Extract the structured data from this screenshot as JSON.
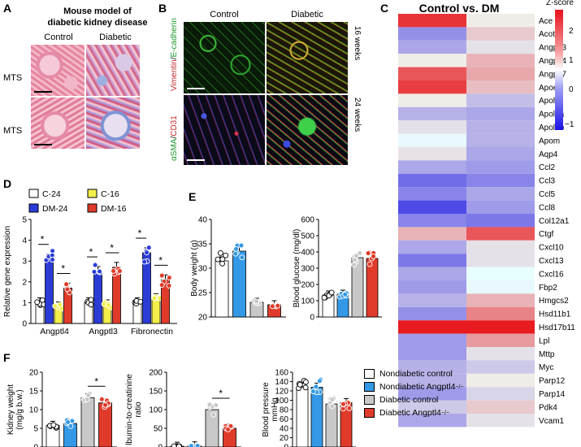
{
  "panels": {
    "A": {
      "label": "A",
      "title_line1": "Mouse model of",
      "title_line2": "diabetic kidney disease",
      "col_control": "Control",
      "col_diabetic": "Diabetic",
      "row1": "MTS",
      "row2": "MTS"
    },
    "B": {
      "label": "B",
      "col_control": "Control",
      "col_diabetic": "Diabetic",
      "row1_side": "16 weeks",
      "row2_side": "24 weeks",
      "stain_top_a": "Vimentin",
      "stain_top_sep": "/",
      "stain_top_b": "E-cadherin",
      "stain_bottom_a": "αSMA",
      "stain_bottom_sep": "/",
      "stain_bottom_b": "CD31"
    },
    "C": {
      "label": "C",
      "title": "Control vs. DM",
      "scale_title": "Z-score",
      "scale_ticks": [
        "2",
        "1",
        "0",
        "−1"
      ]
    },
    "D": {
      "label": "D"
    },
    "E": {
      "label": "E"
    },
    "F": {
      "label": "F"
    }
  },
  "chart_data": [
    {
      "id": "heatmap-C",
      "type": "heatmap",
      "columns": [
        "Control",
        "DM"
      ],
      "genes": [
        "Ace",
        "Acot1",
        "Angptl3",
        "Angptl4",
        "Angptl7",
        "Apoe",
        "Apoh",
        "Apol9a",
        "Apol9b",
        "Apom",
        "Aqp4",
        "Ccl2",
        "Ccl3",
        "Ccl5",
        "Ccl8",
        "Col12a1",
        "Ctgf",
        "Cxcl10",
        "Cxcl13",
        "Cxcl16",
        "Fbp2",
        "Hmgcs2",
        "Hsd11b1",
        "Hsd17b11",
        "Lpl",
        "Mttp",
        "Myc",
        "Parp12",
        "Parp14",
        "Pdk4",
        "Vcam1"
      ],
      "z": [
        [
          1.9,
          -0.3
        ],
        [
          -1.1,
          0.6
        ],
        [
          -0.9,
          -0.4
        ],
        [
          -0.3,
          0.8
        ],
        [
          1.6,
          0.9
        ],
        [
          1.8,
          0.7
        ],
        [
          -0.3,
          -0.7
        ],
        [
          -0.8,
          -0.9
        ],
        [
          -0.4,
          -0.8
        ],
        [
          0.2,
          -0.8
        ],
        [
          0.4,
          -0.9
        ],
        [
          -0.9,
          -1.0
        ],
        [
          -1.4,
          -1.2
        ],
        [
          -1.2,
          -0.9
        ],
        [
          -1.7,
          -1.0
        ],
        [
          -1.2,
          -1.3
        ],
        [
          0.8,
          1.6
        ],
        [
          -0.9,
          -0.4
        ],
        [
          -1.3,
          -0.4
        ],
        [
          -0.9,
          0.0
        ],
        [
          -1.0,
          0.2
        ],
        [
          -0.8,
          0.8
        ],
        [
          -1.1,
          1.2
        ],
        [
          2.1,
          2.1
        ],
        [
          -1.0,
          1.0
        ],
        [
          -1.0,
          -0.4
        ],
        [
          -0.8,
          -0.6
        ],
        [
          -0.8,
          -0.3
        ],
        [
          -1.0,
          -0.5
        ],
        [
          -0.6,
          0.6
        ],
        [
          -0.9,
          -0.4
        ]
      ],
      "zlim": [
        -2.2,
        2.2
      ]
    },
    {
      "id": "bar-D",
      "type": "bar",
      "ylabel": "Relative gene expression",
      "ylim": [
        0,
        5
      ],
      "yticks": [
        0,
        1,
        2,
        3,
        4,
        5
      ],
      "categories": [
        "Angptl4",
        "Angptl3",
        "Fibronectin"
      ],
      "series": [
        {
          "name": "C-24",
          "color": "#ffffff",
          "values": [
            1.0,
            1.0,
            1.0
          ]
        },
        {
          "name": "DM-24",
          "color": "#2b3cd6",
          "values": [
            3.1,
            2.5,
            3.4
          ]
        },
        {
          "name": "C-16",
          "color": "#f3ee4a",
          "values": [
            0.8,
            0.9,
            1.2
          ]
        },
        {
          "name": "DM-16",
          "color": "#e03b2a",
          "values": [
            1.7,
            2.7,
            2.1
          ]
        }
      ],
      "legend_order": [
        "C-24",
        "C-16",
        "DM-24",
        "DM-16"
      ],
      "significance": "*"
    },
    {
      "id": "bar-E-weight",
      "type": "bar",
      "ylabel": "Body weight (g)",
      "ylim": [
        20,
        40
      ],
      "yticks": [
        20,
        25,
        30,
        35,
        40
      ],
      "values": [
        31.5,
        33.5,
        23.0,
        22.5
      ],
      "colors": [
        "#ffffff",
        "#3399e6",
        "#c8c8c8",
        "#e03b2a"
      ]
    },
    {
      "id": "bar-E-glucose",
      "type": "bar",
      "ylabel": "Blood glucose (mg/dl)",
      "ylim": [
        0,
        600
      ],
      "yticks": [
        0,
        100,
        200,
        300,
        400,
        500,
        600
      ],
      "values": [
        135,
        140,
        365,
        360
      ],
      "colors": [
        "#ffffff",
        "#3399e6",
        "#c8c8c8",
        "#e03b2a"
      ]
    },
    {
      "id": "bar-F-kidney",
      "type": "bar",
      "ylabel_line1": "Kidney weight",
      "ylabel_line2": "(mg/g b.w.)",
      "ylim": [
        0,
        20
      ],
      "yticks": [
        0,
        5,
        10,
        15,
        20
      ],
      "values": [
        5.8,
        6.3,
        13.2,
        11.8
      ],
      "colors": [
        "#ffffff",
        "#3399e6",
        "#c8c8c8",
        "#e03b2a"
      ],
      "significance": "*"
    },
    {
      "id": "bar-F-albumin",
      "type": "bar",
      "ylabel_line1": "lbumin-to-creatinine",
      "ylabel_line2": "ratio",
      "ylim": [
        0,
        200
      ],
      "yticks": [
        0,
        50,
        100,
        150,
        200
      ],
      "values": [
        2,
        3,
        100,
        50
      ],
      "colors": [
        "#ffffff",
        "#3399e6",
        "#c8c8c8",
        "#e03b2a"
      ],
      "significance": "*"
    },
    {
      "id": "bar-F-pressure",
      "type": "bar",
      "ylabel_line1": "Blood pressure",
      "ylabel_line2": "mmHg",
      "ylim": [
        0,
        160
      ],
      "yticks": [
        0,
        20,
        40,
        60,
        80,
        100,
        120,
        140,
        160
      ],
      "values": [
        128,
        128,
        92,
        95
      ],
      "colors": [
        "#ffffff",
        "#3399e6",
        "#c8c8c8",
        "#e03b2a"
      ]
    }
  ],
  "legend_F": [
    {
      "label": "Nondiabetic control",
      "color": "#ffffff"
    },
    {
      "label": "Nondiabetic Angptl4",
      "sup": "−/−",
      "color": "#3399e6"
    },
    {
      "label": "Diabetic control",
      "color": "#c8c8c8"
    },
    {
      "label": "Diabetic Angptl4",
      "sup": "−/−",
      "color": "#e03b2a"
    }
  ]
}
